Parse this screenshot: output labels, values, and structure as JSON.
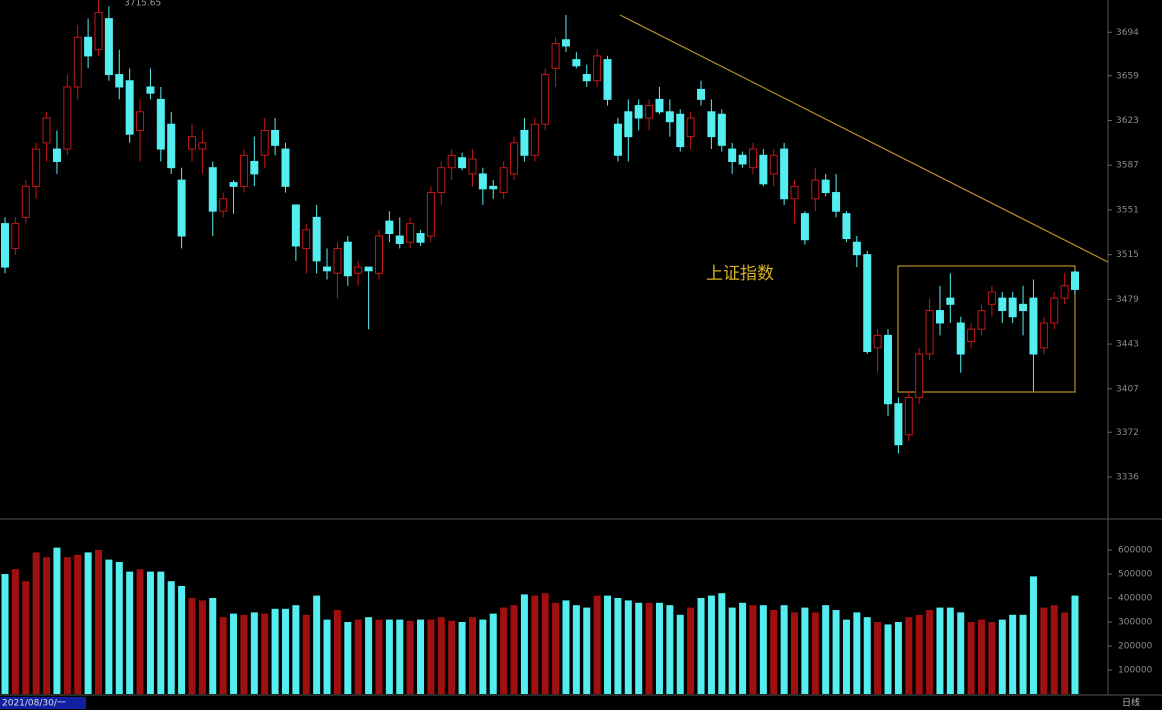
{
  "chart_data": {
    "type": "candlestick",
    "label": "上证指数",
    "high_label": "3715.65",
    "date_label": "2021/08/30/一",
    "period": "日线",
    "up_color": "#c01818",
    "down_color": "#54eef0",
    "ylim": [
      3303,
      3720
    ],
    "yticks": [
      3694,
      3659,
      3623,
      3587,
      3551,
      3515,
      3479,
      3443,
      3407,
      3372,
      3336
    ],
    "vlim": [
      0,
      725000
    ],
    "vticks": [
      600000,
      500000,
      400000,
      300000,
      200000,
      100000
    ],
    "open": [
      3540,
      3520,
      3545,
      3570,
      3605,
      3600,
      3600,
      3650,
      3690,
      3680,
      3705,
      3660,
      3655,
      3615,
      3650,
      3640,
      3620,
      3575,
      3600,
      3600,
      3585,
      3550,
      3573,
      3570,
      3590,
      3595,
      3615,
      3600,
      3555,
      3520,
      3545,
      3505,
      3500,
      3525,
      3500,
      3505,
      3500,
      3542,
      3530,
      3525,
      3532,
      3530,
      3565,
      3585,
      3593,
      3580,
      3580,
      3570,
      3565,
      3580,
      3615,
      3595,
      3620,
      3665,
      3688,
      3672,
      3660,
      3655,
      3672,
      3620,
      3630,
      3635,
      3625,
      3640,
      3630,
      3628,
      3610,
      3648,
      3630,
      3628,
      3600,
      3595,
      3585,
      3595,
      3580,
      3600,
      3560,
      3548,
      3560,
      3575,
      3565,
      3548,
      3525,
      3515,
      3440,
      3450,
      3395,
      3370,
      3400,
      3435,
      3470,
      3480,
      3460,
      3445,
      3455,
      3475,
      3480,
      3480,
      3475,
      3480,
      3440,
      3460,
      3480,
      3501
    ],
    "high": [
      3545,
      3545,
      3575,
      3605,
      3630,
      3615,
      3660,
      3700,
      3705,
      3720,
      3715,
      3680,
      3665,
      3640,
      3665,
      3650,
      3630,
      3585,
      3620,
      3615,
      3590,
      3565,
      3575,
      3600,
      3610,
      3625,
      3625,
      3605,
      3555,
      3540,
      3555,
      3520,
      3525,
      3530,
      3510,
      3505,
      3535,
      3550,
      3545,
      3545,
      3535,
      3570,
      3590,
      3600,
      3597,
      3600,
      3585,
      3575,
      3590,
      3610,
      3625,
      3625,
      3665,
      3690,
      3708,
      3678,
      3668,
      3680,
      3675,
      3625,
      3640,
      3640,
      3640,
      3650,
      3640,
      3632,
      3630,
      3655,
      3640,
      3632,
      3605,
      3598,
      3605,
      3600,
      3600,
      3605,
      3575,
      3550,
      3585,
      3580,
      3580,
      3550,
      3530,
      3518,
      3455,
      3455,
      3400,
      3405,
      3440,
      3480,
      3490,
      3500,
      3465,
      3460,
      3475,
      3490,
      3485,
      3485,
      3490,
      3495,
      3465,
      3485,
      3500,
      3502
    ],
    "low": [
      3500,
      3515,
      3540,
      3560,
      3590,
      3580,
      3595,
      3640,
      3665,
      3675,
      3655,
      3640,
      3605,
      3590,
      3640,
      3590,
      3580,
      3520,
      3590,
      3580,
      3530,
      3545,
      3548,
      3565,
      3570,
      3585,
      3595,
      3565,
      3510,
      3500,
      3500,
      3495,
      3480,
      3490,
      3490,
      3455,
      3495,
      3525,
      3520,
      3520,
      3522,
      3525,
      3555,
      3575,
      3583,
      3570,
      3555,
      3560,
      3560,
      3575,
      3590,
      3590,
      3615,
      3650,
      3678,
      3665,
      3650,
      3650,
      3635,
      3590,
      3590,
      3615,
      3615,
      3628,
      3610,
      3598,
      3600,
      3635,
      3600,
      3598,
      3580,
      3585,
      3580,
      3570,
      3570,
      3555,
      3540,
      3523,
      3550,
      3562,
      3545,
      3525,
      3505,
      3435,
      3420,
      3385,
      3355,
      3365,
      3395,
      3430,
      3450,
      3460,
      3420,
      3440,
      3450,
      3465,
      3460,
      3460,
      3450,
      3405,
      3435,
      3455,
      3475,
      3483
    ],
    "close": [
      3505,
      3540,
      3570,
      3600,
      3625,
      3590,
      3650,
      3690,
      3675,
      3710,
      3660,
      3650,
      3612,
      3630,
      3645,
      3600,
      3585,
      3530,
      3610,
      3605,
      3550,
      3560,
      3570,
      3595,
      3580,
      3615,
      3603,
      3570,
      3522,
      3535,
      3510,
      3502,
      3520,
      3498,
      3505,
      3502,
      3530,
      3532,
      3524,
      3540,
      3525,
      3565,
      3585,
      3595,
      3585,
      3592,
      3568,
      3568,
      3585,
      3605,
      3595,
      3620,
      3660,
      3685,
      3683,
      3667,
      3655,
      3675,
      3640,
      3595,
      3610,
      3625,
      3635,
      3630,
      3622,
      3602,
      3625,
      3640,
      3610,
      3603,
      3590,
      3588,
      3600,
      3572,
      3595,
      3560,
      3570,
      3527,
      3575,
      3565,
      3550,
      3528,
      3515,
      3437,
      3450,
      3395,
      3362,
      3400,
      3435,
      3470,
      3460,
      3475,
      3435,
      3455,
      3470,
      3485,
      3470,
      3465,
      3470,
      3435,
      3460,
      3480,
      3490,
      3487
    ],
    "volume": [
      500000,
      520000,
      470000,
      590000,
      570000,
      610000,
      570000,
      580000,
      590000,
      600000,
      560000,
      550000,
      510000,
      520000,
      510000,
      510000,
      470000,
      450000,
      400000,
      390000,
      400000,
      320000,
      335000,
      330000,
      340000,
      335000,
      355000,
      355000,
      370000,
      330000,
      410000,
      310000,
      350000,
      300000,
      310000,
      320000,
      310000,
      310000,
      310000,
      305000,
      310000,
      310000,
      320000,
      305000,
      300000,
      320000,
      310000,
      335000,
      360000,
      370000,
      415000,
      410000,
      420000,
      380000,
      390000,
      370000,
      360000,
      410000,
      410000,
      400000,
      390000,
      380000,
      380000,
      380000,
      370000,
      330000,
      360000,
      400000,
      410000,
      420000,
      360000,
      380000,
      370000,
      370000,
      350000,
      370000,
      340000,
      360000,
      340000,
      370000,
      350000,
      310000,
      340000,
      320000,
      300000,
      290000,
      300000,
      320000,
      330000,
      350000,
      360000,
      360000,
      340000,
      300000,
      310000,
      300000,
      310000,
      330000,
      330000,
      490000,
      360000,
      370000,
      340000,
      410000
    ]
  }
}
